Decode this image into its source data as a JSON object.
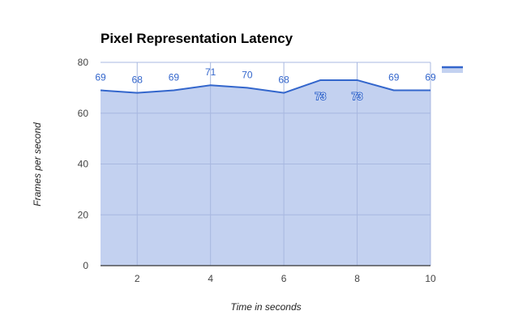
{
  "chart_data": {
    "type": "area",
    "title": "Pixel Representation Latency",
    "xlabel": "Time in seconds",
    "ylabel": "Frames per second",
    "x": [
      1,
      2,
      3,
      4,
      5,
      6,
      7,
      8,
      9,
      10
    ],
    "series": [
      {
        "values": [
          69,
          68,
          69,
          71,
          70,
          68,
          73,
          73,
          69,
          69
        ]
      }
    ],
    "data_labels": [
      "69",
      "68",
      "69",
      "71",
      "70",
      "68",
      "73",
      "73",
      "69",
      "69"
    ],
    "xlim": [
      1,
      10
    ],
    "ylim": [
      0,
      80
    ],
    "x_ticks": [
      "2",
      "4",
      "6",
      "8",
      "10"
    ],
    "y_ticks": [
      "0",
      "20",
      "40",
      "60",
      "80"
    ],
    "grid": true,
    "legend": "right",
    "colors": {
      "line": "#3366cc",
      "fill": "#c3d1f0",
      "grid": "#a8b8e0",
      "axis": "#333333"
    }
  }
}
